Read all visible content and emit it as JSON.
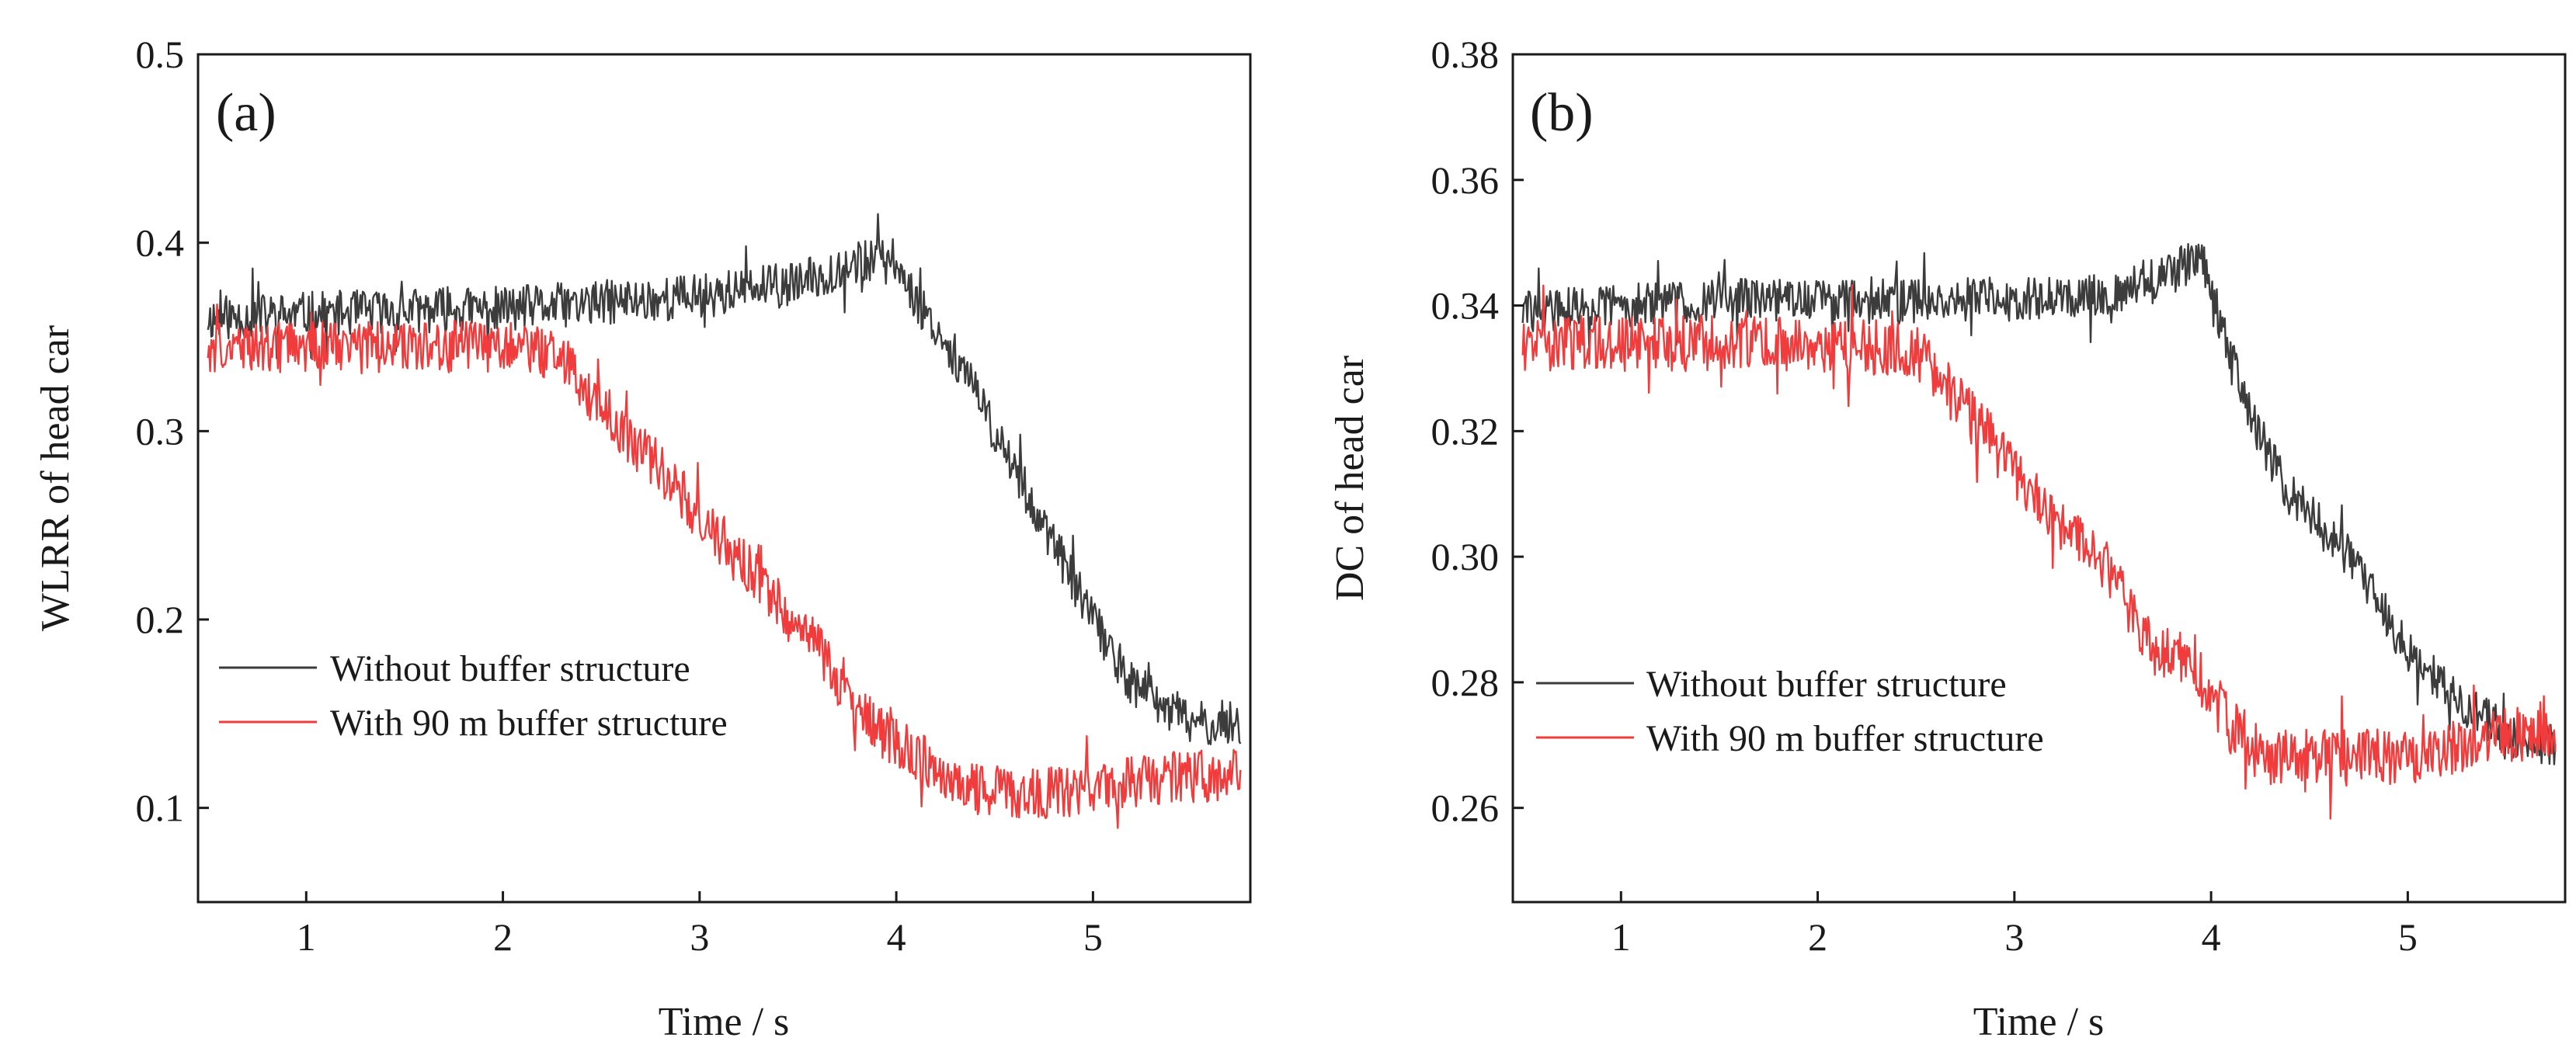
{
  "chart_data": [
    {
      "type": "line",
      "panel_label": "(a)",
      "xlabel": "Time / s",
      "ylabel": "WLRR of head car",
      "xlim": [
        0.45,
        5.8
      ],
      "ylim": [
        0.05,
        0.5
      ],
      "xticks": [
        "1",
        "2",
        "3",
        "4",
        "5"
      ],
      "yticks": [
        "0.1",
        "0.2",
        "0.3",
        "0.4",
        "0.5"
      ],
      "legend_position": "bottom-left",
      "series": [
        {
          "name": "Without buffer structure",
          "color": "#3c3c3c",
          "noise": 0.012,
          "x": [
            0.5,
            1.0,
            1.5,
            2.0,
            2.5,
            3.0,
            3.5,
            3.8,
            4.0,
            4.1,
            4.3,
            4.5,
            4.8,
            5.0,
            5.2,
            5.5,
            5.75
          ],
          "y": [
            0.36,
            0.362,
            0.364,
            0.365,
            0.368,
            0.372,
            0.378,
            0.39,
            0.39,
            0.37,
            0.34,
            0.3,
            0.24,
            0.2,
            0.165,
            0.145,
            0.145
          ]
        },
        {
          "name": "With 90 m buffer structure",
          "color": "#f03c3c",
          "noise": 0.014,
          "x": [
            0.5,
            1.0,
            1.5,
            2.0,
            2.3,
            2.5,
            2.8,
            3.0,
            3.3,
            3.6,
            3.8,
            4.0,
            4.2,
            4.4,
            4.7,
            5.0,
            5.3,
            5.75
          ],
          "y": [
            0.345,
            0.345,
            0.345,
            0.345,
            0.34,
            0.31,
            0.28,
            0.255,
            0.22,
            0.185,
            0.15,
            0.135,
            0.12,
            0.11,
            0.108,
            0.11,
            0.115,
            0.118
          ]
        }
      ]
    },
    {
      "type": "line",
      "panel_label": "(b)",
      "xlabel": "Time / s",
      "ylabel": "DC of head car",
      "xlim": [
        0.45,
        5.8
      ],
      "ylim": [
        0.245,
        0.38
      ],
      "xticks": [
        "1",
        "2",
        "3",
        "4",
        "5"
      ],
      "yticks": [
        "0.26",
        "0.28",
        "0.30",
        "0.32",
        "0.34",
        "0.36",
        "0.38"
      ],
      "legend_position": "bottom-left",
      "series": [
        {
          "name": "Without buffer structure",
          "color": "#3c3c3c",
          "noise": 0.0035,
          "x": [
            0.5,
            1.0,
            1.5,
            2.0,
            2.5,
            3.0,
            3.5,
            3.85,
            3.95,
            4.05,
            4.2,
            4.4,
            4.7,
            5.0,
            5.3,
            5.6,
            5.75
          ],
          "y": [
            0.339,
            0.34,
            0.341,
            0.341,
            0.341,
            0.341,
            0.342,
            0.346,
            0.348,
            0.338,
            0.322,
            0.31,
            0.3,
            0.285,
            0.276,
            0.27,
            0.27
          ]
        },
        {
          "name": "With 90 m buffer structure",
          "color": "#f03c3c",
          "noise": 0.0045,
          "x": [
            0.5,
            1.0,
            1.5,
            2.0,
            2.5,
            2.7,
            2.9,
            3.1,
            3.3,
            3.5,
            3.7,
            3.9,
            4.1,
            4.3,
            4.6,
            5.0,
            5.3,
            5.75
          ],
          "y": [
            0.334,
            0.334,
            0.334,
            0.334,
            0.333,
            0.325,
            0.318,
            0.31,
            0.303,
            0.297,
            0.285,
            0.283,
            0.273,
            0.268,
            0.268,
            0.268,
            0.27,
            0.273
          ]
        }
      ]
    }
  ]
}
